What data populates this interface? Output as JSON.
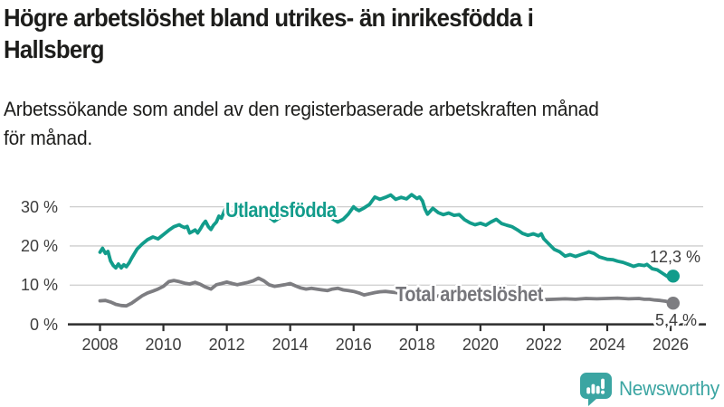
{
  "header": {
    "title_line1": "Högre arbetslöshet bland utrikes- än inrikesfödda i",
    "title_line2": "Hallsberg",
    "subtitle_line1": "Arbetssökande som andel av den registerbaserade arbetskraften månad",
    "subtitle_line2": "för månad."
  },
  "colors": {
    "foreign_line": "#129c8b",
    "total_line": "#7d7d81",
    "total_label": "#76767b",
    "annotation": "#3d3d3d",
    "axis": "#2d2d2d",
    "gridline": "#cdcdcd",
    "logo": "#3ba5a2",
    "text": "#1d1d1b"
  },
  "logo": {
    "name": "Newsworthy",
    "icon": "speech-bubble-bar-chart-icon"
  },
  "chart_data": {
    "type": "line",
    "title": "Högre arbetslöshet bland utrikes- än inrikesfödda i Hallsberg",
    "subtitle": "Arbetssökande som andel av den registerbaserade arbetskraften månad för månad.",
    "unit": "%",
    "grid": true,
    "x_axis": {
      "ticks": [
        "2008",
        "2010",
        "2012",
        "2014",
        "2016",
        "2018",
        "2020",
        "2022",
        "2024",
        "2026"
      ],
      "range": [
        2007,
        2027.1
      ]
    },
    "y_axis": {
      "tick_labels": [
        "0 %",
        "10 %",
        "20 %",
        "30 %"
      ],
      "tick_values": [
        0,
        10,
        20,
        30
      ],
      "range": [
        0,
        34
      ]
    },
    "series": [
      {
        "name": "Utlandsfödda",
        "color": "#129c8b",
        "end_label": "12,3 %",
        "end_value": 12.3,
        "points": [
          [
            2008.0,
            18.4
          ],
          [
            2008.08,
            19.4
          ],
          [
            2008.17,
            18.1
          ],
          [
            2008.25,
            18.6
          ],
          [
            2008.33,
            16.2
          ],
          [
            2008.42,
            15.0
          ],
          [
            2008.5,
            14.4
          ],
          [
            2008.58,
            15.4
          ],
          [
            2008.67,
            14.4
          ],
          [
            2008.75,
            15.2
          ],
          [
            2008.83,
            14.7
          ],
          [
            2008.92,
            15.7
          ],
          [
            2009.0,
            16.9
          ],
          [
            2009.17,
            19.2
          ],
          [
            2009.33,
            20.5
          ],
          [
            2009.5,
            21.6
          ],
          [
            2009.67,
            22.3
          ],
          [
            2009.83,
            21.8
          ],
          [
            2010.0,
            22.9
          ],
          [
            2010.17,
            24.0
          ],
          [
            2010.33,
            24.9
          ],
          [
            2010.5,
            25.4
          ],
          [
            2010.58,
            25.0
          ],
          [
            2010.67,
            24.7
          ],
          [
            2010.75,
            25.0
          ],
          [
            2010.83,
            23.3
          ],
          [
            2010.92,
            23.7
          ],
          [
            2011.0,
            24.1
          ],
          [
            2011.08,
            23.3
          ],
          [
            2011.17,
            24.4
          ],
          [
            2011.25,
            25.5
          ],
          [
            2011.33,
            26.3
          ],
          [
            2011.42,
            24.9
          ],
          [
            2011.5,
            24.2
          ],
          [
            2011.58,
            25.3
          ],
          [
            2011.67,
            26.1
          ],
          [
            2011.75,
            27.6
          ],
          [
            2011.83,
            27.1
          ],
          [
            2011.92,
            28.9
          ],
          [
            2012.0,
            30.3
          ],
          [
            2012.08,
            29.1
          ],
          [
            2012.17,
            28.3
          ],
          [
            2012.25,
            28.9
          ],
          [
            2012.33,
            27.7
          ],
          [
            2012.42,
            28.0
          ],
          [
            2012.5,
            28.4
          ],
          [
            2012.58,
            27.7
          ],
          [
            2012.67,
            28.5
          ],
          [
            2012.75,
            29.1
          ],
          [
            2012.83,
            28.4
          ],
          [
            2012.92,
            28.1
          ],
          [
            2013.0,
            28.7
          ],
          [
            2013.17,
            28.2
          ],
          [
            2013.33,
            27.4
          ],
          [
            2013.5,
            26.3
          ],
          [
            2013.67,
            27.2
          ],
          [
            2013.83,
            28.1
          ],
          [
            2014.0,
            28.6
          ],
          [
            2014.17,
            27.8
          ],
          [
            2014.33,
            28.3
          ],
          [
            2014.5,
            27.6
          ],
          [
            2014.67,
            28.4
          ],
          [
            2014.83,
            27.9
          ],
          [
            2015.0,
            28.3
          ],
          [
            2015.17,
            27.6
          ],
          [
            2015.33,
            26.9
          ],
          [
            2015.5,
            26.1
          ],
          [
            2015.67,
            26.8
          ],
          [
            2015.83,
            28.1
          ],
          [
            2016.0,
            30.0
          ],
          [
            2016.08,
            29.4
          ],
          [
            2016.17,
            29.0
          ],
          [
            2016.33,
            29.7
          ],
          [
            2016.5,
            30.6
          ],
          [
            2016.67,
            32.5
          ],
          [
            2016.83,
            31.9
          ],
          [
            2017.0,
            32.4
          ],
          [
            2017.17,
            33.0
          ],
          [
            2017.33,
            31.9
          ],
          [
            2017.5,
            32.4
          ],
          [
            2017.67,
            32.0
          ],
          [
            2017.83,
            33.1
          ],
          [
            2018.0,
            32.1
          ],
          [
            2018.08,
            32.5
          ],
          [
            2018.17,
            31.5
          ],
          [
            2018.25,
            29.4
          ],
          [
            2018.33,
            28.1
          ],
          [
            2018.5,
            29.6
          ],
          [
            2018.67,
            28.5
          ],
          [
            2018.83,
            28.0
          ],
          [
            2019.0,
            28.4
          ],
          [
            2019.17,
            27.8
          ],
          [
            2019.33,
            28.0
          ],
          [
            2019.5,
            26.7
          ],
          [
            2019.67,
            25.9
          ],
          [
            2019.83,
            25.4
          ],
          [
            2020.0,
            25.8
          ],
          [
            2020.17,
            25.3
          ],
          [
            2020.33,
            26.1
          ],
          [
            2020.5,
            26.8
          ],
          [
            2020.67,
            25.7
          ],
          [
            2020.83,
            25.3
          ],
          [
            2021.0,
            24.9
          ],
          [
            2021.17,
            24.1
          ],
          [
            2021.33,
            23.2
          ],
          [
            2021.5,
            22.7
          ],
          [
            2021.67,
            23.1
          ],
          [
            2021.83,
            22.6
          ],
          [
            2021.92,
            23.1
          ],
          [
            2022.0,
            21.8
          ],
          [
            2022.17,
            20.4
          ],
          [
            2022.33,
            19.1
          ],
          [
            2022.5,
            18.5
          ],
          [
            2022.67,
            17.4
          ],
          [
            2022.83,
            17.8
          ],
          [
            2023.0,
            17.3
          ],
          [
            2023.17,
            17.8
          ],
          [
            2023.33,
            18.2
          ],
          [
            2023.42,
            18.5
          ],
          [
            2023.58,
            18.1
          ],
          [
            2023.75,
            17.2
          ],
          [
            2023.92,
            16.8
          ],
          [
            2024.0,
            16.6
          ],
          [
            2024.17,
            16.5
          ],
          [
            2024.33,
            16.1
          ],
          [
            2024.5,
            15.8
          ],
          [
            2024.67,
            15.3
          ],
          [
            2024.83,
            14.8
          ],
          [
            2025.0,
            15.2
          ],
          [
            2025.17,
            15.0
          ],
          [
            2025.25,
            15.3
          ],
          [
            2025.42,
            14.2
          ],
          [
            2025.58,
            13.9
          ],
          [
            2025.75,
            13.0
          ],
          [
            2025.92,
            12.1
          ],
          [
            2026.0,
            12.5
          ],
          [
            2026.08,
            12.3
          ]
        ]
      },
      {
        "name": "Total arbetslöshet",
        "color": "#7d7d81",
        "end_label": "5,4 %",
        "end_value": 5.4,
        "points": [
          [
            2008.0,
            6.0
          ],
          [
            2008.17,
            6.1
          ],
          [
            2008.33,
            5.7
          ],
          [
            2008.5,
            5.1
          ],
          [
            2008.67,
            4.8
          ],
          [
            2008.83,
            4.7
          ],
          [
            2009.0,
            5.4
          ],
          [
            2009.17,
            6.4
          ],
          [
            2009.33,
            7.3
          ],
          [
            2009.5,
            8.0
          ],
          [
            2009.67,
            8.5
          ],
          [
            2009.83,
            9.0
          ],
          [
            2010.0,
            9.7
          ],
          [
            2010.17,
            10.9
          ],
          [
            2010.33,
            11.2
          ],
          [
            2010.5,
            10.9
          ],
          [
            2010.67,
            10.5
          ],
          [
            2010.83,
            10.3
          ],
          [
            2011.0,
            10.7
          ],
          [
            2011.17,
            10.2
          ],
          [
            2011.33,
            9.5
          ],
          [
            2011.5,
            9.0
          ],
          [
            2011.67,
            10.1
          ],
          [
            2011.83,
            10.4
          ],
          [
            2012.0,
            10.8
          ],
          [
            2012.17,
            10.4
          ],
          [
            2012.33,
            10.1
          ],
          [
            2012.5,
            10.4
          ],
          [
            2012.67,
            10.7
          ],
          [
            2012.83,
            11.1
          ],
          [
            2013.0,
            11.8
          ],
          [
            2013.17,
            11.1
          ],
          [
            2013.33,
            10.1
          ],
          [
            2013.5,
            9.7
          ],
          [
            2013.67,
            9.9
          ],
          [
            2013.83,
            10.1
          ],
          [
            2014.0,
            10.4
          ],
          [
            2014.17,
            9.8
          ],
          [
            2014.33,
            9.3
          ],
          [
            2014.5,
            9.0
          ],
          [
            2014.67,
            9.2
          ],
          [
            2014.83,
            9.0
          ],
          [
            2015.0,
            8.8
          ],
          [
            2015.17,
            8.6
          ],
          [
            2015.33,
            9.0
          ],
          [
            2015.5,
            9.2
          ],
          [
            2015.67,
            8.8
          ],
          [
            2015.83,
            8.6
          ],
          [
            2016.0,
            8.4
          ],
          [
            2016.17,
            8.0
          ],
          [
            2016.33,
            7.5
          ],
          [
            2016.5,
            7.8
          ],
          [
            2016.67,
            8.1
          ],
          [
            2016.83,
            8.3
          ],
          [
            2017.0,
            8.4
          ],
          [
            2017.33,
            8.1
          ],
          [
            2017.67,
            7.8
          ],
          [
            2018.0,
            7.6
          ],
          [
            2018.33,
            7.4
          ],
          [
            2018.67,
            7.2
          ],
          [
            2019.0,
            7.0
          ],
          [
            2019.33,
            6.9
          ],
          [
            2019.67,
            6.8
          ],
          [
            2020.0,
            7.1
          ],
          [
            2020.33,
            7.4
          ],
          [
            2020.67,
            7.3
          ],
          [
            2021.0,
            7.1
          ],
          [
            2021.33,
            6.8
          ],
          [
            2021.67,
            6.5
          ],
          [
            2022.0,
            6.3
          ],
          [
            2022.33,
            6.4
          ],
          [
            2022.67,
            6.5
          ],
          [
            2023.0,
            6.4
          ],
          [
            2023.33,
            6.6
          ],
          [
            2023.67,
            6.5
          ],
          [
            2024.0,
            6.6
          ],
          [
            2024.33,
            6.7
          ],
          [
            2024.67,
            6.5
          ],
          [
            2025.0,
            6.6
          ],
          [
            2025.17,
            6.4
          ],
          [
            2025.33,
            6.4
          ],
          [
            2025.5,
            6.2
          ],
          [
            2025.67,
            6.1
          ],
          [
            2025.83,
            5.9
          ],
          [
            2026.0,
            5.6
          ],
          [
            2026.08,
            5.4
          ]
        ]
      }
    ]
  }
}
